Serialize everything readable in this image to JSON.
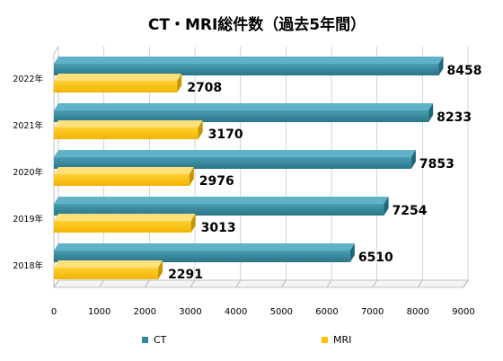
{
  "chart_data": {
    "type": "bar",
    "orientation": "horizontal",
    "title": "CT・MRI総件数（過去5年間）",
    "categories": [
      "2018年",
      "2019年",
      "2020年",
      "2021年",
      "2022年"
    ],
    "series": [
      {
        "name": "CT",
        "color": "#31859c",
        "values": [
          6510,
          7254,
          7853,
          8233,
          8458
        ]
      },
      {
        "name": "MRI",
        "color": "#ffc000",
        "values": [
          2291,
          3013,
          2976,
          3170,
          2708
        ]
      }
    ],
    "xlim": [
      0,
      9000
    ],
    "xticks": [
      0,
      1000,
      2000,
      3000,
      4000,
      5000,
      6000,
      7000,
      8000,
      9000
    ],
    "grid": true,
    "legend_position": "bottom"
  }
}
